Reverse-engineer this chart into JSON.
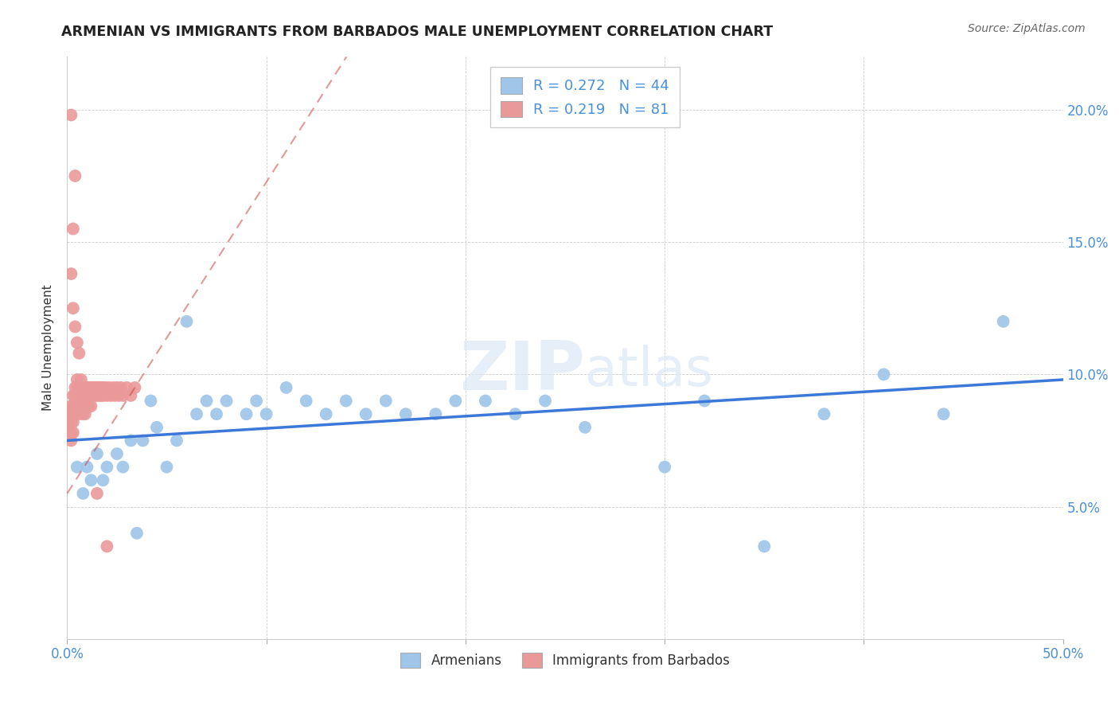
{
  "title": "ARMENIAN VS IMMIGRANTS FROM BARBADOS MALE UNEMPLOYMENT CORRELATION CHART",
  "source": "Source: ZipAtlas.com",
  "ylabel": "Male Unemployment",
  "xlim": [
    0.0,
    0.5
  ],
  "ylim": [
    0.0,
    0.22
  ],
  "xticks": [
    0.0,
    0.1,
    0.2,
    0.3,
    0.4,
    0.5
  ],
  "xtick_labels": [
    "0.0%",
    "",
    "",
    "",
    "",
    "50.0%"
  ],
  "yticks": [
    0.0,
    0.05,
    0.1,
    0.15,
    0.2
  ],
  "ytick_labels_right": [
    "",
    "5.0%",
    "10.0%",
    "15.0%",
    "20.0%"
  ],
  "blue_color": "#9fc5e8",
  "pink_color": "#ea9999",
  "blue_line_color": "#3c78d8",
  "pink_line_color": "#cc4444",
  "grid_color": "#cccccc",
  "R_blue": 0.272,
  "N_blue": 44,
  "R_pink": 0.219,
  "N_pink": 81,
  "legend1": "Armenians",
  "legend2": "Immigrants from Barbados",
  "blue_line_y0": 0.075,
  "blue_line_y1": 0.098,
  "pink_line_x0": 0.0,
  "pink_line_y0": 0.055,
  "pink_line_x1": 0.085,
  "pink_line_y1": 0.155,
  "blue_x": [
    0.005,
    0.008,
    0.01,
    0.012,
    0.015,
    0.018,
    0.02,
    0.025,
    0.028,
    0.032,
    0.035,
    0.038,
    0.042,
    0.045,
    0.05,
    0.055,
    0.06,
    0.065,
    0.07,
    0.075,
    0.08,
    0.09,
    0.095,
    0.1,
    0.11,
    0.12,
    0.13,
    0.14,
    0.15,
    0.16,
    0.17,
    0.185,
    0.195,
    0.21,
    0.225,
    0.24,
    0.26,
    0.3,
    0.32,
    0.35,
    0.38,
    0.41,
    0.44,
    0.47
  ],
  "blue_y": [
    0.065,
    0.055,
    0.065,
    0.06,
    0.07,
    0.06,
    0.065,
    0.07,
    0.065,
    0.075,
    0.04,
    0.075,
    0.09,
    0.08,
    0.065,
    0.075,
    0.12,
    0.085,
    0.09,
    0.085,
    0.09,
    0.085,
    0.09,
    0.085,
    0.095,
    0.09,
    0.085,
    0.09,
    0.085,
    0.09,
    0.085,
    0.085,
    0.09,
    0.09,
    0.085,
    0.09,
    0.08,
    0.065,
    0.09,
    0.035,
    0.085,
    0.1,
    0.085,
    0.12
  ],
  "pink_x": [
    0.001,
    0.001,
    0.001,
    0.002,
    0.002,
    0.002,
    0.002,
    0.002,
    0.003,
    0.003,
    0.003,
    0.003,
    0.003,
    0.004,
    0.004,
    0.004,
    0.004,
    0.005,
    0.005,
    0.005,
    0.005,
    0.006,
    0.006,
    0.006,
    0.006,
    0.007,
    0.007,
    0.007,
    0.007,
    0.008,
    0.008,
    0.008,
    0.008,
    0.009,
    0.009,
    0.009,
    0.009,
    0.01,
    0.01,
    0.01,
    0.011,
    0.011,
    0.011,
    0.012,
    0.012,
    0.012,
    0.013,
    0.013,
    0.014,
    0.014,
    0.015,
    0.015,
    0.016,
    0.016,
    0.017,
    0.017,
    0.018,
    0.018,
    0.019,
    0.02,
    0.021,
    0.022,
    0.023,
    0.024,
    0.025,
    0.026,
    0.027,
    0.028,
    0.03,
    0.032,
    0.034,
    0.002,
    0.003,
    0.004,
    0.005,
    0.006,
    0.015,
    0.02,
    0.002,
    0.004,
    0.003
  ],
  "pink_y": [
    0.085,
    0.082,
    0.078,
    0.088,
    0.085,
    0.082,
    0.078,
    0.075,
    0.092,
    0.088,
    0.085,
    0.082,
    0.078,
    0.095,
    0.092,
    0.088,
    0.085,
    0.098,
    0.095,
    0.092,
    0.088,
    0.095,
    0.092,
    0.088,
    0.085,
    0.098,
    0.095,
    0.092,
    0.088,
    0.095,
    0.092,
    0.088,
    0.085,
    0.095,
    0.092,
    0.088,
    0.085,
    0.095,
    0.092,
    0.088,
    0.095,
    0.092,
    0.088,
    0.095,
    0.092,
    0.088,
    0.095,
    0.092,
    0.095,
    0.092,
    0.095,
    0.092,
    0.095,
    0.092,
    0.095,
    0.092,
    0.095,
    0.092,
    0.095,
    0.092,
    0.095,
    0.092,
    0.095,
    0.092,
    0.095,
    0.092,
    0.095,
    0.092,
    0.095,
    0.092,
    0.095,
    0.138,
    0.125,
    0.118,
    0.112,
    0.108,
    0.055,
    0.035,
    0.198,
    0.175,
    0.155
  ]
}
